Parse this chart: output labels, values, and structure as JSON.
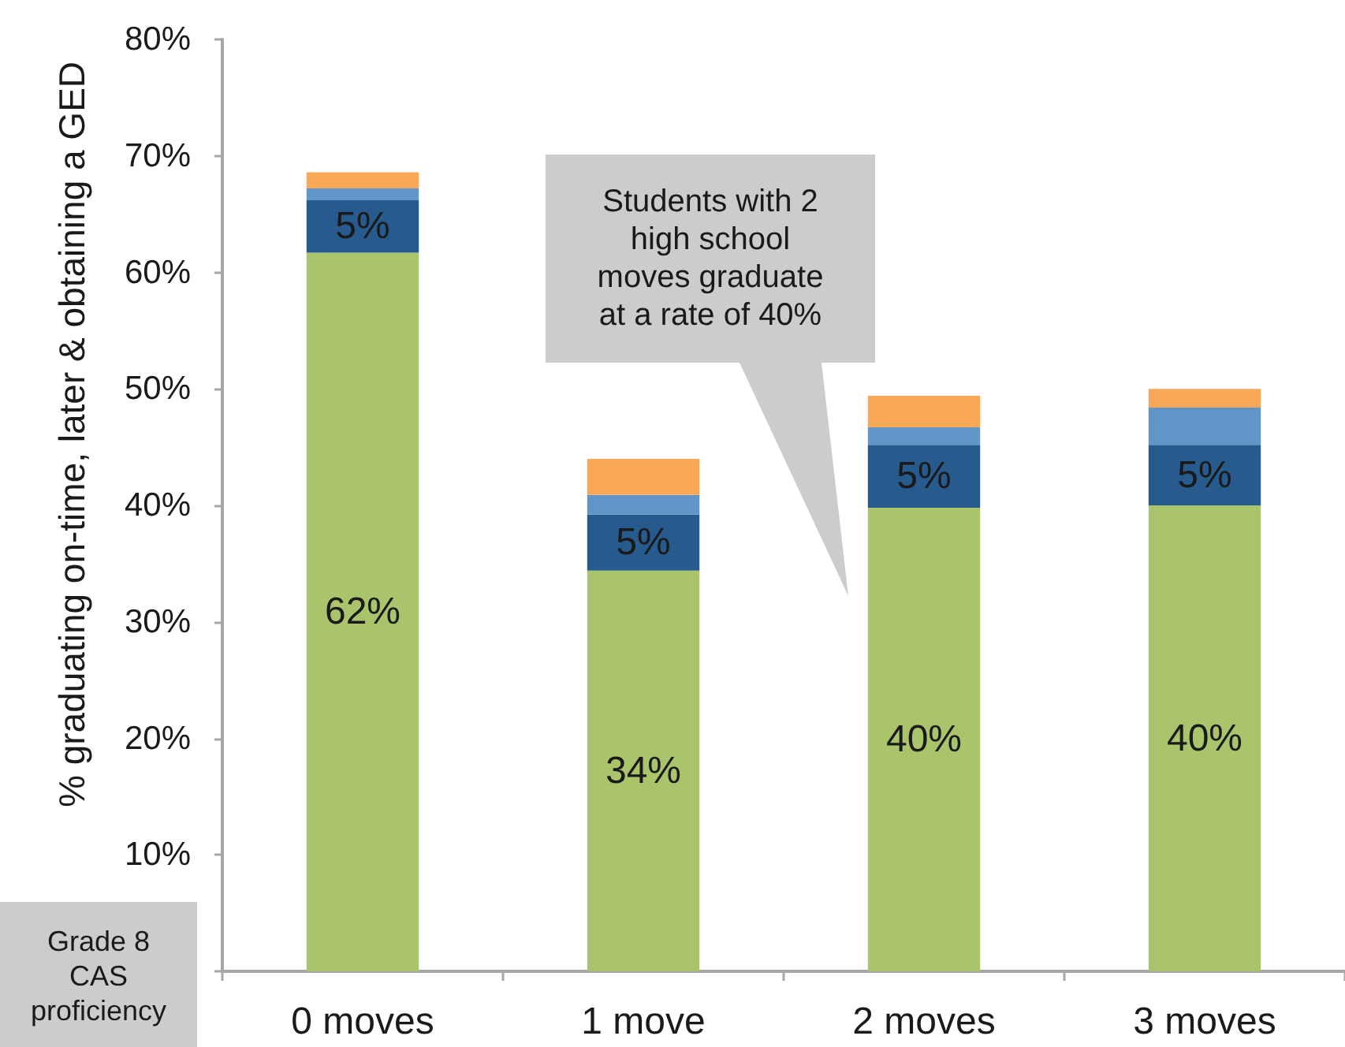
{
  "chart_data": {
    "type": "bar",
    "stacked": true,
    "ylabel": "% graduating on-time, later & obtaining a GED",
    "categories": [
      "0 moves",
      "1 move",
      "2 moves",
      "3 moves"
    ],
    "series": [
      {
        "color": "#a9c46b",
        "values": [
          61.7,
          34.4,
          39.8,
          40.0
        ],
        "value_labels": [
          "62%",
          "34%",
          "40%",
          "40%"
        ]
      },
      {
        "color": "#275b8d",
        "values": [
          4.5,
          4.8,
          5.4,
          5.2
        ],
        "value_labels": [
          "5%",
          "5%",
          "5%",
          "5%"
        ]
      },
      {
        "color": "#6195c8",
        "values": [
          1.0,
          1.7,
          1.5,
          3.2
        ]
      },
      {
        "color": "#f9a857",
        "values": [
          1.4,
          3.1,
          2.7,
          1.6
        ]
      }
    ],
    "ylim": [
      0,
      80
    ],
    "yticks": [
      {
        "value": 0,
        "label": null
      },
      {
        "value": 10,
        "label": "10%"
      },
      {
        "value": 20,
        "label": "20%"
      },
      {
        "value": 30,
        "label": "30%"
      },
      {
        "value": 40,
        "label": "40%"
      },
      {
        "value": 50,
        "label": "50%"
      },
      {
        "value": 60,
        "label": "60%"
      },
      {
        "value": 70,
        "label": "70%"
      },
      {
        "value": 80,
        "label": "80%"
      }
    ],
    "grid": false,
    "annotations": [
      "Students with 2 high school moves graduate at a rate of 40%",
      "Grade 8 CAS proficiency"
    ]
  }
}
